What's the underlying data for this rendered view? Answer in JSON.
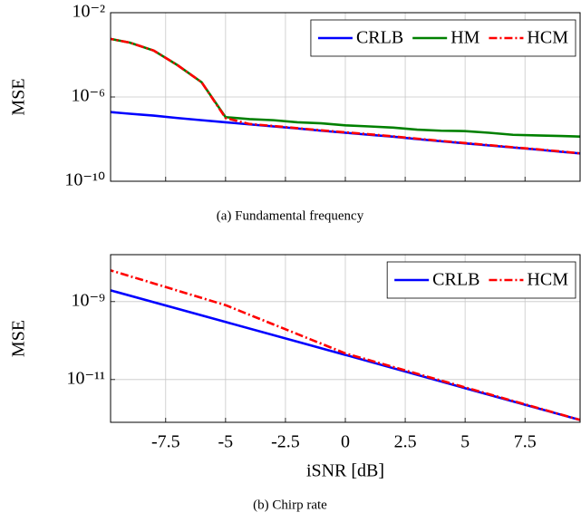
{
  "chart_data": [
    {
      "type": "line",
      "caption": "(a) Fundamental frequency",
      "ylabel": "MSE",
      "log_y": true,
      "grid": true,
      "legend": "upper right",
      "x": [
        -10,
        -9,
        -8,
        -7,
        -6,
        -5,
        -4,
        -3,
        -2,
        -1,
        0,
        1,
        2,
        3,
        4,
        5,
        6,
        7,
        8,
        9,
        10
      ],
      "series": [
        {
          "name": "CRLB",
          "color": "#0000ff",
          "style": "solid",
          "values": [
            2e-07,
            1.6e-07,
            1.3e-07,
            1e-07,
            7.9e-08,
            6.3e-08,
            5e-08,
            4e-08,
            3.2e-08,
            2.5e-08,
            2e-08,
            1.6e-08,
            1.3e-08,
            1e-08,
            7.9e-09,
            6.3e-09,
            5e-09,
            4e-09,
            3.2e-09,
            2.5e-09,
            2e-09
          ]
        },
        {
          "name": "HM",
          "color": "#008000",
          "style": "solid",
          "values": [
            0.00063,
            0.00038,
            0.00016,
            3.2e-05,
            5e-06,
            1.1e-07,
            8.9e-08,
            7.9e-08,
            6.3e-08,
            5.6e-08,
            4.5e-08,
            4e-08,
            3.5e-08,
            2.8e-08,
            2.5e-08,
            2.4e-08,
            2e-08,
            1.6e-08,
            1.5e-08,
            1.4e-08,
            1.3e-08
          ]
        },
        {
          "name": "HCM",
          "color": "#ff0000",
          "style": "dash-dot",
          "values": [
            0.00063,
            0.00038,
            0.00016,
            3.2e-05,
            5e-06,
            1e-07,
            5.2e-08,
            4.2e-08,
            3.3e-08,
            2.6e-08,
            2.1e-08,
            1.7e-08,
            1.35e-08,
            1.05e-08,
            8.2e-09,
            6.5e-09,
            5.2e-09,
            4.1e-09,
            3.3e-09,
            2.6e-09,
            2e-09
          ]
        }
      ],
      "xlim": [
        -9.8,
        9.8
      ],
      "xticks": [
        -7.5,
        -5,
        -2.5,
        0,
        2.5,
        5,
        7.5
      ],
      "ylim": [
        1e-10,
        0.01
      ],
      "yticks": [
        {
          "value": 0.01,
          "label": "10⁻²"
        },
        {
          "value": 1e-06,
          "label": "10⁻⁶"
        },
        {
          "value": 1e-10,
          "label": "10⁻¹⁰"
        }
      ]
    },
    {
      "type": "line",
      "caption": "(b) Chirp rate",
      "xlabel": "iSNR [dB]",
      "ylabel": "MSE",
      "log_y": true,
      "grid": true,
      "legend": "upper right",
      "x": [
        -10,
        -5,
        0,
        5,
        10
      ],
      "series": [
        {
          "name": "CRLB",
          "color": "#0000ff",
          "style": "solid",
          "values": [
            2.1e-09,
            3e-10,
            4.3e-11,
            6e-12,
            8.5e-13
          ]
        },
        {
          "name": "HCM",
          "color": "#ff0000",
          "style": "dash-dot",
          "values": [
            6.9e-09,
            8.1e-10,
            4.7e-11,
            6.3e-12,
            8.5e-13
          ]
        }
      ],
      "xlim": [
        -9.8,
        9.8
      ],
      "xticks": [
        -7.5,
        -5,
        -2.5,
        0,
        2.5,
        5,
        7.5
      ],
      "ylim": [
        8e-13,
        1.6e-08
      ],
      "yticks": [
        {
          "value": 1e-09,
          "label": "10⁻⁹"
        },
        {
          "value": 1e-11,
          "label": "10⁻¹¹"
        }
      ]
    }
  ]
}
